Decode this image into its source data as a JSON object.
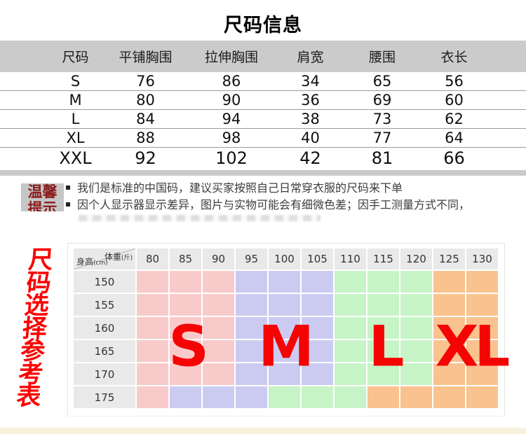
{
  "title": "尺码信息",
  "colors": {
    "header_bar": "#cbcbcb",
    "row_divider": "#9b9b9b",
    "table_bottom_strip": "#c9c9c9",
    "tips_box_bg": "#c6c6c6",
    "tips_label_red": "#8b1c1c",
    "accent_red": "#fa0202",
    "grid_header_bg": "#e9e9e9",
    "page_bottom_strip": "#f8f1dc",
    "zone_S": "#f9caca",
    "zone_M": "#cbcbf2",
    "zone_L": "#c6f4c6",
    "zone_XL": "#f9c28e"
  },
  "size_table": {
    "columns": [
      "尺码",
      "平铺胸围",
      "拉伸胸围",
      "肩宽",
      "腰围",
      "衣长"
    ],
    "rows": [
      [
        "S",
        "76",
        "86",
        "34",
        "65",
        "56"
      ],
      [
        "M",
        "80",
        "90",
        "36",
        "69",
        "60"
      ],
      [
        "L",
        "84",
        "94",
        "38",
        "73",
        "62"
      ],
      [
        "XL",
        "88",
        "98",
        "40",
        "77",
        "64"
      ],
      [
        "XXL",
        "92",
        "102",
        "42",
        "81",
        "66"
      ]
    ]
  },
  "tips": {
    "label_line1": "温馨",
    "label_line2": "提示",
    "bullets": [
      "我们是标准的中国码，建议买家按照自己日常穿衣服的尺码来下单",
      "因个人显示器显示差异，图片与实物可能会有细微色差；因手工测量方式不同，"
    ]
  },
  "side_label": {
    "text": "尺码选择参考表",
    "chars": [
      "尺",
      "码",
      "选",
      "择",
      "参",
      "考",
      "表"
    ]
  },
  "chart_data": {
    "type": "heatmap",
    "title": "尺码选择参考表",
    "x_axis": {
      "label": "体重",
      "unit": "(斤)"
    },
    "y_axis": {
      "label": "身高",
      "unit": "(cm)"
    },
    "weight_columns": [
      "80",
      "85",
      "90",
      "95",
      "100",
      "105",
      "110",
      "115",
      "120",
      "125",
      "130"
    ],
    "height_rows": [
      "150",
      "155",
      "160",
      "165",
      "170",
      "175"
    ],
    "zones": [
      [
        "S",
        "S",
        "S",
        "M",
        "M",
        "M",
        "L",
        "L",
        "L",
        "XL",
        "XL"
      ],
      [
        "S",
        "S",
        "S",
        "M",
        "M",
        "M",
        "L",
        "L",
        "L",
        "XL",
        "XL"
      ],
      [
        "S",
        "S",
        "S",
        "M",
        "M",
        "M",
        "L",
        "L",
        "L",
        "XL",
        "XL"
      ],
      [
        "S",
        "S",
        "S",
        "M",
        "M",
        "M",
        "L",
        "L",
        "L",
        "XL",
        "XL"
      ],
      [
        "S",
        "S",
        "S",
        "M",
        "M",
        "M",
        "L",
        "L",
        "L",
        "XL",
        "XL"
      ],
      [
        "S",
        "M",
        "M",
        "M",
        "L",
        "L",
        "L",
        "XL",
        "XL",
        "XL",
        "XL"
      ]
    ],
    "zone_labels": [
      "S",
      "M",
      "L",
      "XL"
    ]
  }
}
